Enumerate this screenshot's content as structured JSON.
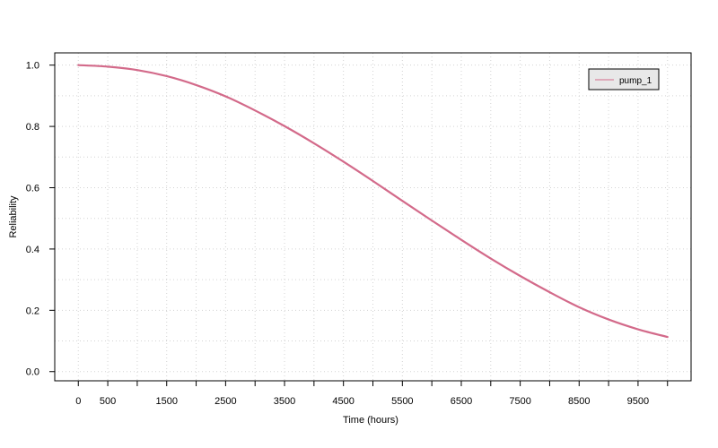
{
  "chart_data": {
    "type": "line",
    "title": "",
    "xlabel": "Time (hours)",
    "ylabel": "Reliability",
    "xlim": [
      -400,
      10400
    ],
    "ylim": [
      -0.03,
      1.04
    ],
    "x_tick_labels": [
      "0",
      "500",
      "1500",
      "2500",
      "3500",
      "4500",
      "5500",
      "6500",
      "7500",
      "8500",
      "9500"
    ],
    "x_tick_values": [
      0,
      500,
      1500,
      2500,
      3500,
      4500,
      5500,
      6500,
      7500,
      8500,
      9500
    ],
    "x_minor_ticks": [
      1000,
      2000,
      3000,
      4000,
      5000,
      6000,
      7000,
      8000,
      9000,
      10000
    ],
    "y_tick_labels": [
      "0.0",
      "0.2",
      "0.4",
      "0.6",
      "0.8",
      "1.0"
    ],
    "y_tick_values": [
      0.0,
      0.2,
      0.4,
      0.6,
      0.8,
      1.0
    ],
    "grid": true,
    "legend_position": "top-right",
    "series": [
      {
        "name": "pump_1",
        "color": "#d36a8a",
        "x": [
          0,
          500,
          1000,
          1500,
          2000,
          2500,
          3000,
          3500,
          4000,
          4500,
          5000,
          5500,
          6000,
          6500,
          7000,
          7500,
          8000,
          8500,
          9000,
          9500,
          10000
        ],
        "y": [
          1.0,
          0.995,
          0.984,
          0.964,
          0.935,
          0.898,
          0.852,
          0.801,
          0.745,
          0.685,
          0.622,
          0.557,
          0.493,
          0.43,
          0.369,
          0.312,
          0.259,
          0.21,
          0.17,
          0.138,
          0.113
        ]
      }
    ]
  }
}
